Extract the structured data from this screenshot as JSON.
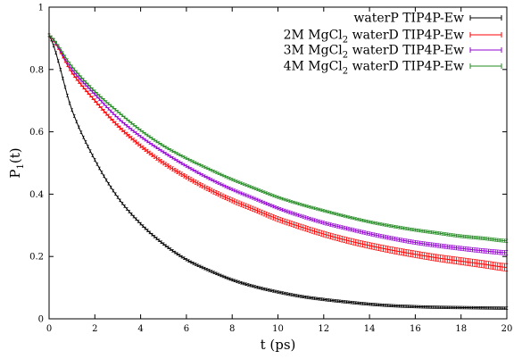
{
  "chart_data": {
    "type": "line",
    "xlabel": "t (ps)",
    "ylabel": "P1(t)",
    "ylabel_main": "P",
    "ylabel_sub": "1",
    "ylabel_tail": "(t)",
    "xlim": [
      0,
      20
    ],
    "ylim": [
      0,
      1
    ],
    "xticks": [
      0,
      2,
      4,
      6,
      8,
      10,
      12,
      14,
      16,
      18,
      20
    ],
    "yticks": [
      0,
      0.2,
      0.4,
      0.6,
      0.8,
      1
    ],
    "ytick_labels": [
      "0",
      "0.2",
      "0.4",
      "0.6",
      "0.8",
      "1"
    ],
    "grid": false,
    "legend_position": "top-right",
    "x": [
      0,
      1,
      2,
      3,
      4,
      5,
      6,
      7,
      8,
      9,
      10,
      11,
      12,
      13,
      14,
      15,
      16,
      17,
      18,
      19,
      20
    ],
    "series": [
      {
        "name": "waterP TIP4P-Ew",
        "legend_parts": [
          "waterP TIP4P-Ew"
        ],
        "color": "#000000",
        "values": [
          0.91,
          0.67,
          0.51,
          0.39,
          0.305,
          0.24,
          0.19,
          0.155,
          0.125,
          0.103,
          0.086,
          0.072,
          0.062,
          0.054,
          0.047,
          0.042,
          0.039,
          0.037,
          0.036,
          0.035,
          0.034
        ],
        "error": 0.003
      },
      {
        "name": "2M MgCl2 waterD TIP4P-Ew",
        "legend_parts": [
          "2M MgCl",
          "2",
          " waterD TIP4P-Ew"
        ],
        "color": "#ff0000",
        "values": [
          0.91,
          0.79,
          0.7,
          0.62,
          0.555,
          0.5,
          0.455,
          0.415,
          0.38,
          0.35,
          0.32,
          0.295,
          0.272,
          0.252,
          0.235,
          0.22,
          0.207,
          0.195,
          0.185,
          0.175,
          0.165
        ],
        "error": 0.012
      },
      {
        "name": "3M MgCl2 waterD TIP4P-Ew",
        "legend_parts": [
          "3M MgCl",
          "2",
          " waterD TIP4P-Ew"
        ],
        "color": "#9400d3",
        "values": [
          0.91,
          0.8,
          0.72,
          0.645,
          0.585,
          0.535,
          0.49,
          0.45,
          0.415,
          0.385,
          0.355,
          0.33,
          0.308,
          0.29,
          0.273,
          0.258,
          0.245,
          0.235,
          0.226,
          0.218,
          0.212
        ],
        "error": 0.007
      },
      {
        "name": "4M MgCl2 waterD TIP4P-Ew",
        "legend_parts": [
          "4M MgCl",
          "2",
          " waterD TIP4P-Ew"
        ],
        "color": "#228b22",
        "values": [
          0.91,
          0.81,
          0.73,
          0.665,
          0.605,
          0.555,
          0.515,
          0.48,
          0.447,
          0.418,
          0.39,
          0.367,
          0.347,
          0.328,
          0.311,
          0.297,
          0.285,
          0.275,
          0.265,
          0.258,
          0.25
        ],
        "error": 0.005
      }
    ]
  }
}
